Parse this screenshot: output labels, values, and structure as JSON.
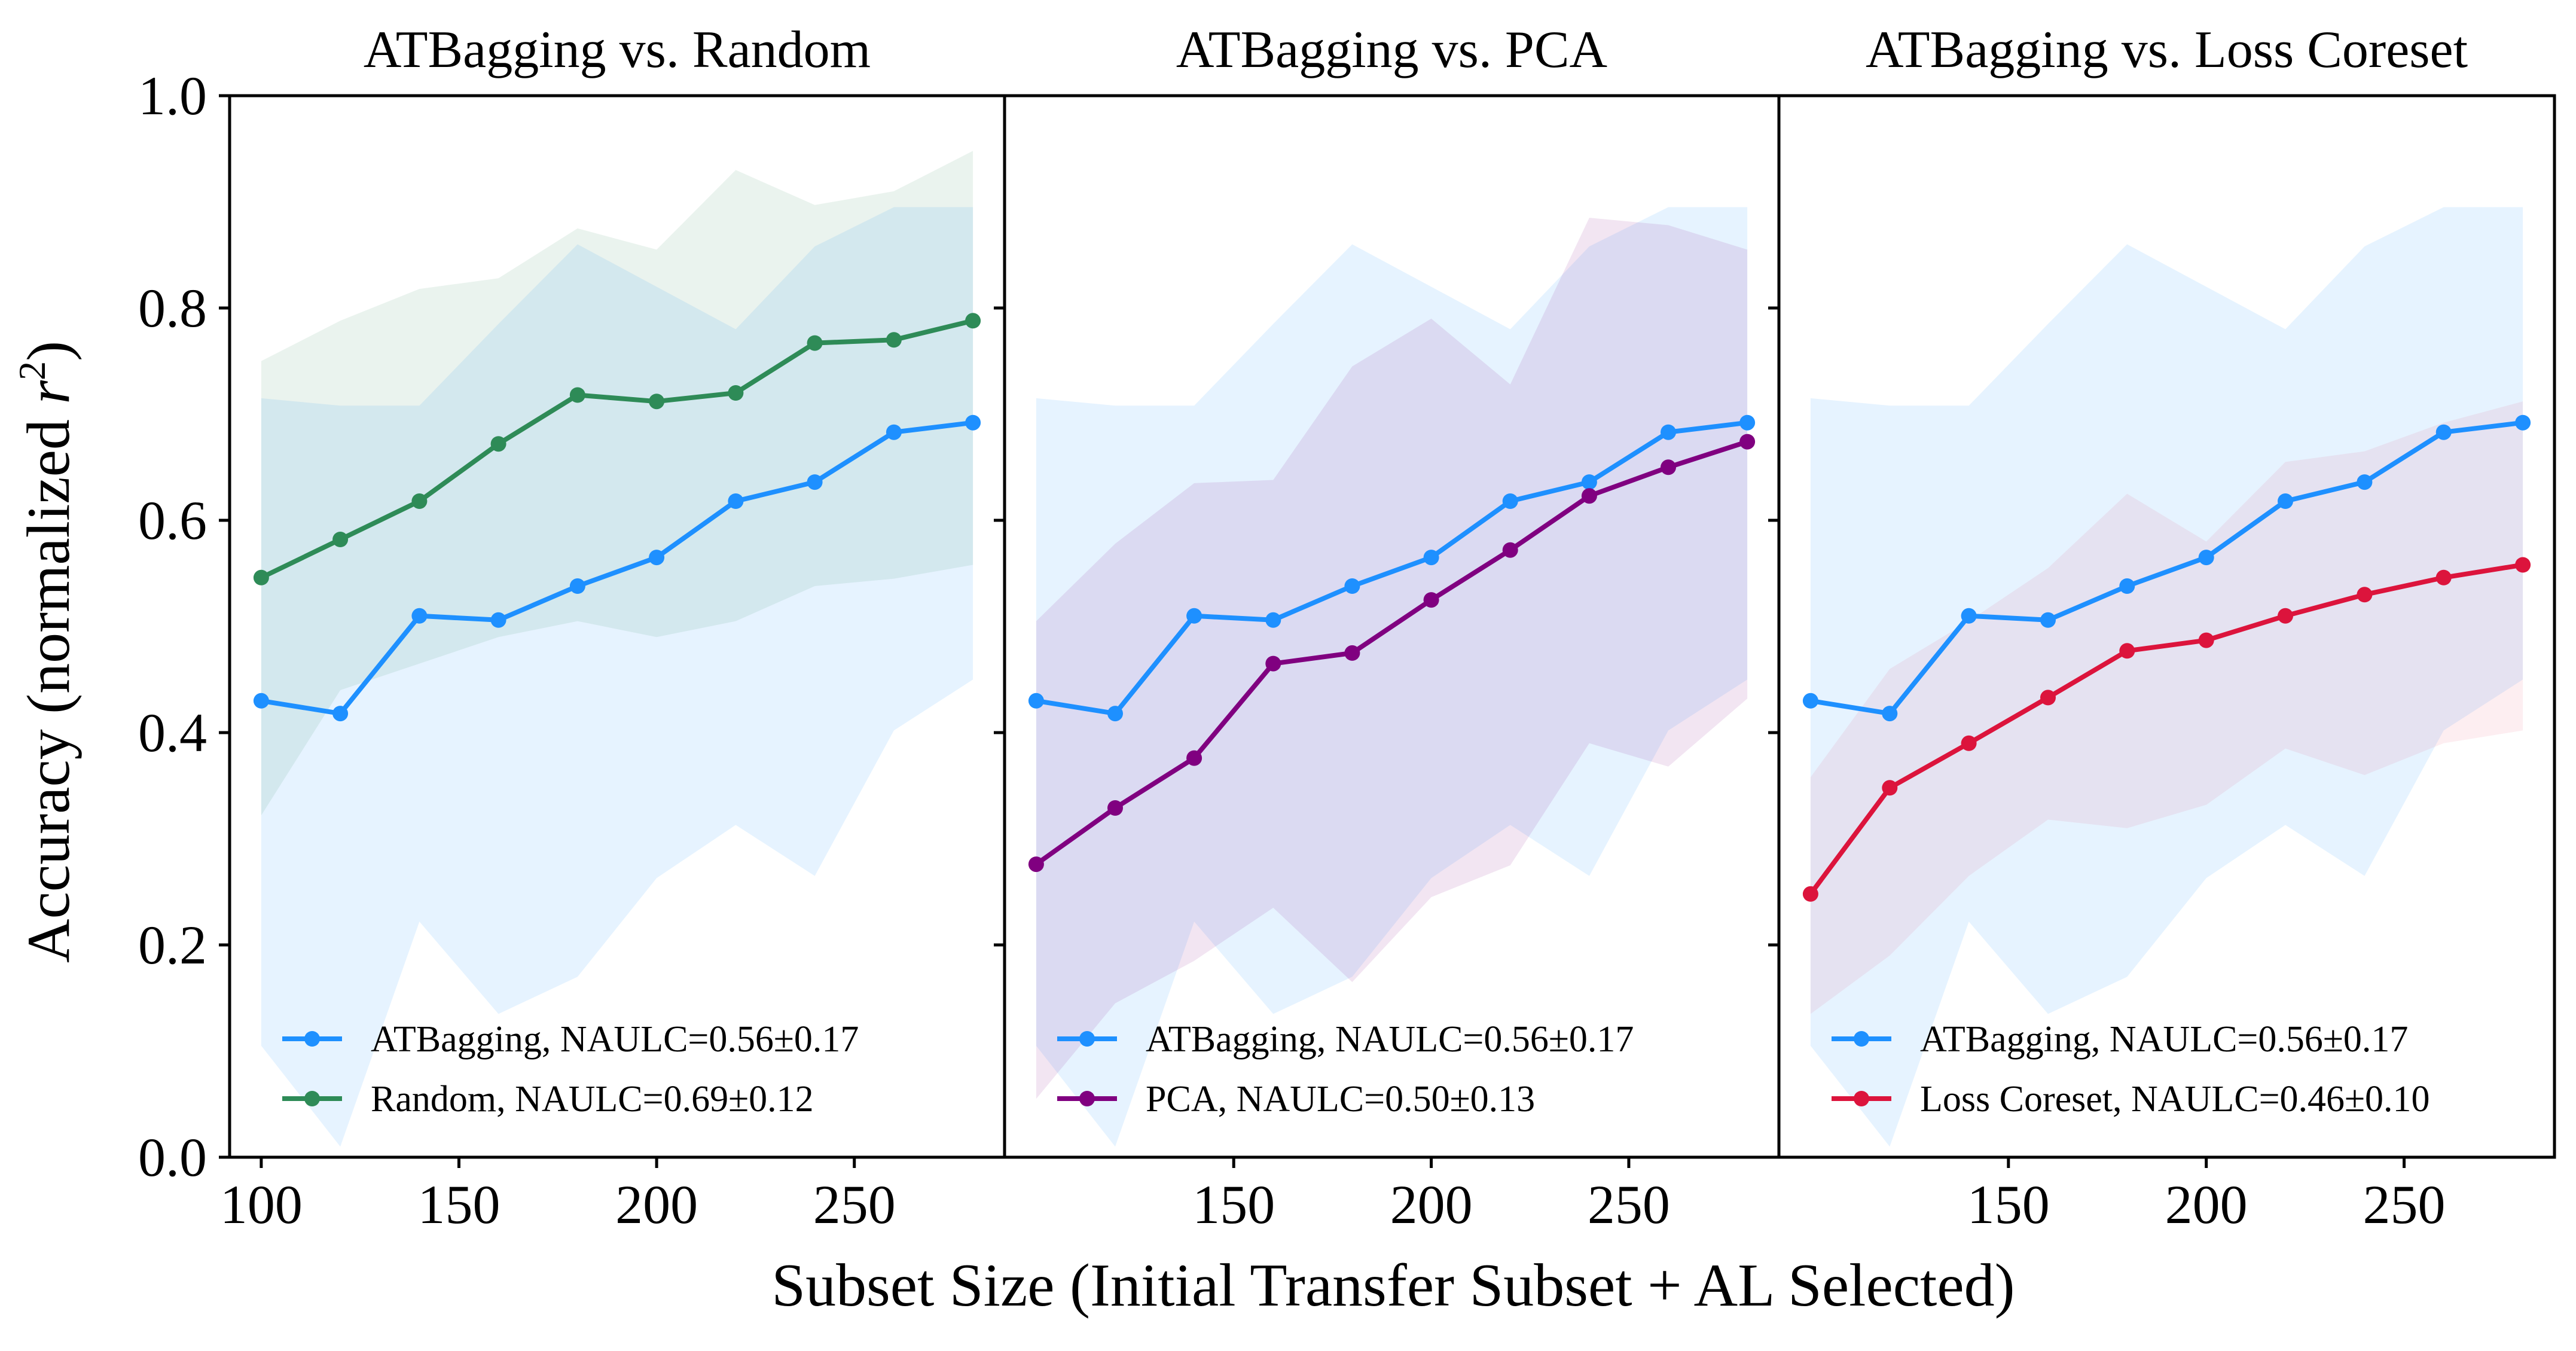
{
  "figure": {
    "ylabel": "Accuracy (normalized r²)",
    "ylabel_main": "Accuracy (normalized ",
    "ylabel_var": "r",
    "ylabel_sup": "2",
    "ylabel_end": ")",
    "xlabel": "Subset Size (Initial Transfer Subset + AL Selected)"
  },
  "chart_data": [
    {
      "type": "line",
      "title": "ATBagging vs. Random",
      "x": [
        100,
        120,
        140,
        160,
        180,
        200,
        220,
        240,
        260,
        280
      ],
      "xlim": [
        92,
        288
      ],
      "ylim": [
        0.0,
        1.0
      ],
      "xticks": [
        "100",
        "150",
        "200",
        "250"
      ],
      "xtick_values": [
        100,
        150,
        200,
        250
      ],
      "yticks": [
        "0.0",
        "0.2",
        "0.4",
        "0.6",
        "0.8",
        "1.0"
      ],
      "ytick_values": [
        0.0,
        0.2,
        0.4,
        0.6,
        0.8,
        1.0
      ],
      "series": [
        {
          "name": "ATBagging",
          "legend": "ATBagging, NAULC=0.56±0.17",
          "color": "#1e90ff",
          "band_opacity": 0.11,
          "values": [
            0.43,
            0.418,
            0.51,
            0.506,
            0.538,
            0.565,
            0.618,
            0.636,
            0.683,
            0.692
          ],
          "lower": [
            0.105,
            0.01,
            0.222,
            0.135,
            0.17,
            0.263,
            0.313,
            0.265,
            0.402,
            0.45
          ],
          "upper": [
            0.715,
            0.708,
            0.708,
            0.785,
            0.86,
            0.82,
            0.78,
            0.858,
            0.895,
            0.895
          ]
        },
        {
          "name": "Random",
          "legend": "Random, NAULC=0.69±0.12",
          "color": "#2e8b57",
          "band_opacity": 0.1,
          "values": [
            0.546,
            0.582,
            0.618,
            0.672,
            0.718,
            0.712,
            0.72,
            0.767,
            0.77,
            0.788
          ],
          "lower": [
            0.322,
            0.44,
            0.465,
            0.49,
            0.505,
            0.49,
            0.505,
            0.538,
            0.545,
            0.558
          ],
          "upper": [
            0.75,
            0.788,
            0.818,
            0.828,
            0.875,
            0.855,
            0.93,
            0.897,
            0.91,
            0.948
          ]
        }
      ]
    },
    {
      "type": "line",
      "title": "ATBagging vs. PCA",
      "x": [
        100,
        120,
        140,
        160,
        180,
        200,
        220,
        240,
        260,
        280
      ],
      "xlim": [
        92,
        288
      ],
      "ylim": [
        0.0,
        1.0
      ],
      "xticks": [
        "150",
        "200",
        "250"
      ],
      "xtick_values": [
        150,
        200,
        250
      ],
      "yticks": [],
      "ytick_values": [
        0.0,
        0.2,
        0.4,
        0.6,
        0.8,
        1.0
      ],
      "series": [
        {
          "name": "ATBagging",
          "legend": "ATBagging, NAULC=0.56±0.17",
          "color": "#1e90ff",
          "band_opacity": 0.11,
          "values": [
            0.43,
            0.418,
            0.51,
            0.506,
            0.538,
            0.565,
            0.618,
            0.636,
            0.683,
            0.692
          ],
          "lower": [
            0.105,
            0.01,
            0.222,
            0.135,
            0.17,
            0.263,
            0.313,
            0.265,
            0.402,
            0.45
          ],
          "upper": [
            0.715,
            0.708,
            0.708,
            0.785,
            0.86,
            0.82,
            0.78,
            0.858,
            0.895,
            0.895
          ]
        },
        {
          "name": "PCA",
          "legend": "PCA, NAULC=0.50±0.13",
          "color": "#800080",
          "band_opacity": 0.1,
          "values": [
            0.276,
            0.329,
            0.376,
            0.465,
            0.475,
            0.525,
            0.572,
            0.623,
            0.65,
            0.674
          ],
          "lower": [
            0.055,
            0.145,
            0.185,
            0.235,
            0.165,
            0.245,
            0.275,
            0.39,
            0.368,
            0.432
          ],
          "upper": [
            0.505,
            0.578,
            0.635,
            0.638,
            0.745,
            0.79,
            0.728,
            0.885,
            0.878,
            0.855
          ]
        }
      ]
    },
    {
      "type": "line",
      "title": "ATBagging vs. Loss Coreset",
      "x": [
        100,
        120,
        140,
        160,
        180,
        200,
        220,
        240,
        260,
        280
      ],
      "xlim": [
        92,
        288
      ],
      "ylim": [
        0.0,
        1.0
      ],
      "xticks": [
        "150",
        "200",
        "250"
      ],
      "xtick_values": [
        150,
        200,
        250
      ],
      "yticks": [],
      "ytick_values": [
        0.0,
        0.2,
        0.4,
        0.6,
        0.8,
        1.0
      ],
      "series": [
        {
          "name": "ATBagging",
          "legend": "ATBagging, NAULC=0.56±0.17",
          "color": "#1e90ff",
          "band_opacity": 0.11,
          "values": [
            0.43,
            0.418,
            0.51,
            0.506,
            0.538,
            0.565,
            0.618,
            0.636,
            0.683,
            0.692
          ],
          "lower": [
            0.105,
            0.01,
            0.222,
            0.135,
            0.17,
            0.263,
            0.313,
            0.265,
            0.402,
            0.45
          ],
          "upper": [
            0.715,
            0.708,
            0.708,
            0.785,
            0.86,
            0.82,
            0.78,
            0.858,
            0.895,
            0.895
          ]
        },
        {
          "name": "Loss Coreset",
          "legend": "Loss Coreset, NAULC=0.46±0.10",
          "color": "#dc143c",
          "band_opacity": 0.07,
          "values": [
            0.248,
            0.348,
            0.39,
            0.433,
            0.477,
            0.487,
            0.51,
            0.53,
            0.546,
            0.558
          ],
          "lower": [
            0.135,
            0.19,
            0.265,
            0.318,
            0.31,
            0.332,
            0.385,
            0.36,
            0.39,
            0.402
          ],
          "upper": [
            0.358,
            0.46,
            0.505,
            0.555,
            0.625,
            0.58,
            0.655,
            0.665,
            0.692,
            0.712
          ]
        }
      ]
    }
  ]
}
